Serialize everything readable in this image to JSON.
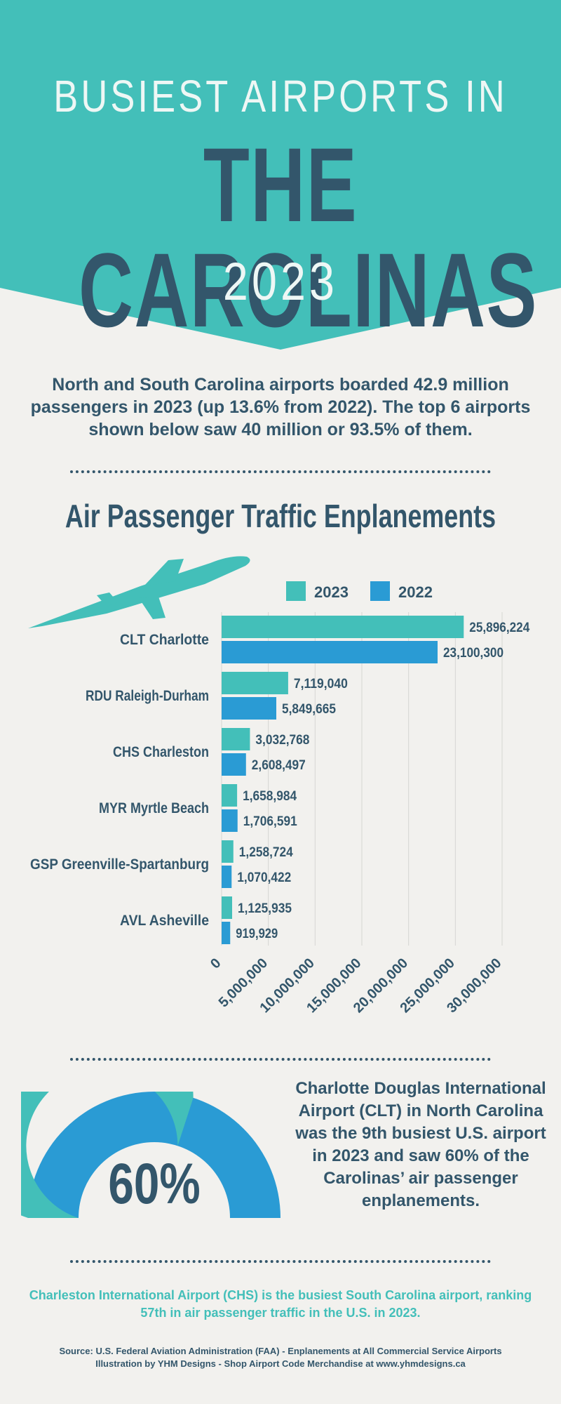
{
  "header": {
    "line1": "BUSIEST AIRPORTS IN",
    "line2": "THE CAROLINAS",
    "line3": "2023"
  },
  "intro": "North and South Carolina airports boarded 42.9 million passengers in 2023 (up 13.6% from 2022). The top 6 airports shown below saw 40 million or 93.5% of them.",
  "colors": {
    "teal": "#43bfb9",
    "blue": "#2a9bd4",
    "navy": "#33566b",
    "background": "#f2f1ee"
  },
  "chart_data": {
    "type": "bar",
    "orientation": "horizontal",
    "title": "Air Passenger Traffic Enplanements",
    "categories": [
      "CLT Charlotte",
      "RDU Raleigh-Durham",
      "CHS Charleston",
      "MYR Myrtle Beach",
      "GSP Greenville-Spartanburg",
      "AVL Asheville"
    ],
    "series": [
      {
        "name": "2023",
        "color": "#43bfb9",
        "values": [
          25896224,
          7119040,
          3032768,
          1658984,
          1258724,
          1125935
        ],
        "labels": [
          "25,896,224",
          "7,119,040",
          "3,032,768",
          "1,658,984",
          "1,258,724",
          "1,125,935"
        ]
      },
      {
        "name": "2022",
        "color": "#2a9bd4",
        "values": [
          23100300,
          5849665,
          2608497,
          1706591,
          1070422,
          919929
        ],
        "labels": [
          "23,100,300",
          "5,849,665",
          "2,608,497",
          "1,706,591",
          "1,070,422",
          "919,929"
        ]
      }
    ],
    "xlim": [
      0,
      30000000
    ],
    "xticks": [
      0,
      5000000,
      10000000,
      15000000,
      20000000,
      25000000,
      30000000
    ],
    "xtick_labels": [
      "0",
      "5,000,000",
      "10,000,000",
      "15,000,000",
      "20,000,000",
      "25,000,000",
      "30,000,000"
    ],
    "grid": "vertical",
    "legend": "top-right"
  },
  "icons": {
    "airplane": "airplane-icon"
  },
  "gauge": {
    "value": 60,
    "label": "60%"
  },
  "clt_fact": "Charlotte Douglas International Airport (CLT) in North Carolina was the 9th busiest U.S. airport in 2023 and saw 60% of the Carolinas’ air passenger enplanements.",
  "chs_fact": "Charleston International Airport (CHS) is the busiest South Carolina airport, ranking 57th in air passenger traffic in the U.S. in 2023.",
  "source": {
    "line1": "Source: U.S. Federal Aviation Administration (FAA) - Enplanements at All Commercial Service Airports",
    "line2": "Illustration by YHM Designs - Shop Airport Code Merchandise at www.yhmdesigns.ca"
  }
}
